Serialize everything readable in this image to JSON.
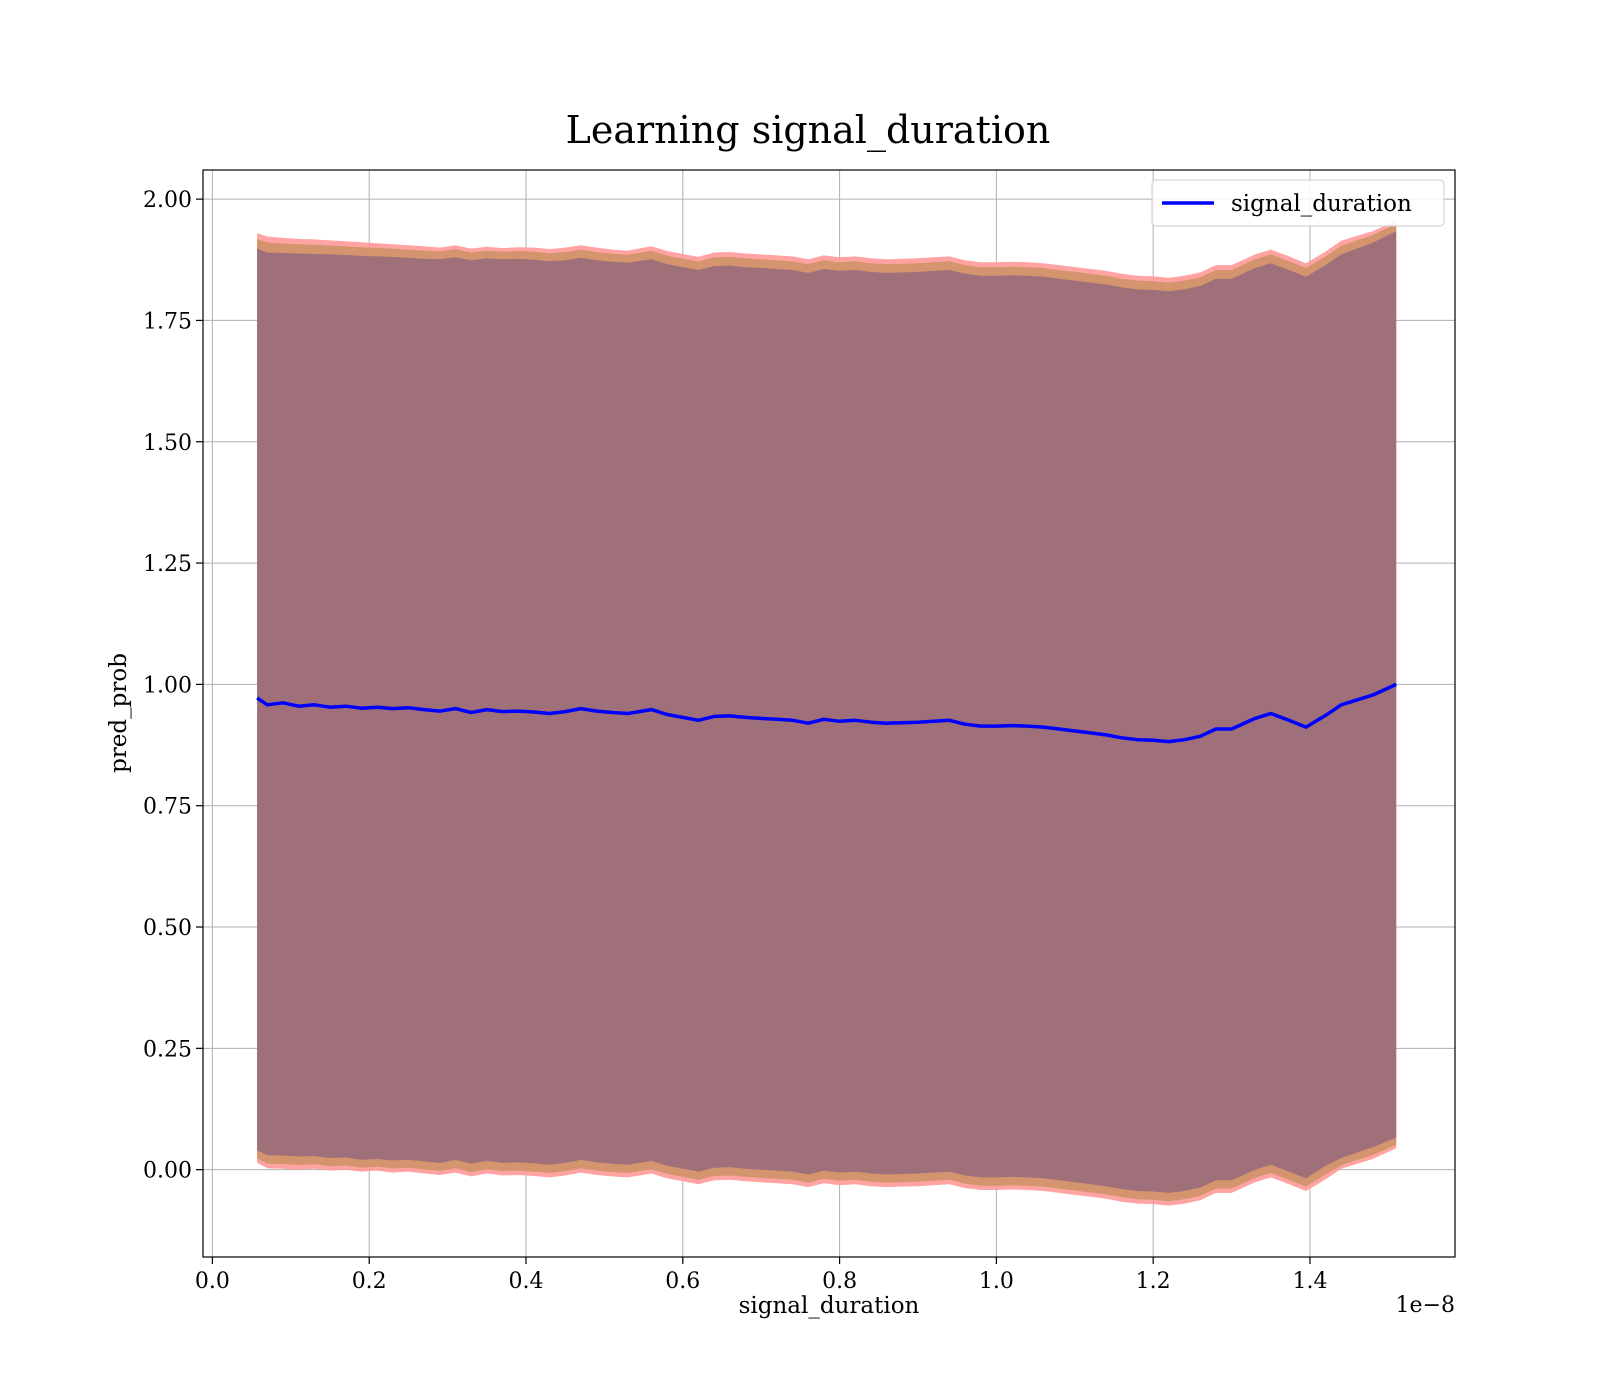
{
  "chart_data": {
    "type": "area",
    "title": "Learning signal_duration",
    "xlabel": "signal_duration",
    "ylabel": "pred_prob",
    "x_offset_text": "1e−8",
    "xlim": [
      -0.012,
      1.585
    ],
    "ylim": [
      -0.18,
      2.06
    ],
    "grid": true,
    "legend_position": "top-right",
    "x_ticks": [
      0.0,
      0.2,
      0.4,
      0.6,
      0.8,
      1.0,
      1.2,
      1.4
    ],
    "x_tick_labels": [
      "0.0",
      "0.2",
      "0.4",
      "0.6",
      "0.8",
      "1.0",
      "1.2",
      "1.4"
    ],
    "y_ticks": [
      0.0,
      0.25,
      0.5,
      0.75,
      1.0,
      1.25,
      1.5,
      1.75,
      2.0
    ],
    "y_tick_labels": [
      "0.00",
      "0.25",
      "0.50",
      "0.75",
      "1.00",
      "1.25",
      "1.50",
      "1.75",
      "2.00"
    ],
    "colors": {
      "line": "#0000ff",
      "band_outer": "#ff9999",
      "band_middle": "#d4956e",
      "band_inner": "#a0707a"
    },
    "series": [
      {
        "name": "signal_duration",
        "x": [
          0.057,
          0.07,
          0.09,
          0.11,
          0.13,
          0.15,
          0.17,
          0.19,
          0.21,
          0.23,
          0.25,
          0.27,
          0.29,
          0.31,
          0.33,
          0.35,
          0.37,
          0.39,
          0.41,
          0.43,
          0.45,
          0.47,
          0.49,
          0.51,
          0.53,
          0.56,
          0.58,
          0.6,
          0.62,
          0.64,
          0.66,
          0.68,
          0.7,
          0.72,
          0.74,
          0.76,
          0.78,
          0.8,
          0.82,
          0.84,
          0.86,
          0.88,
          0.9,
          0.92,
          0.94,
          0.96,
          0.98,
          1.0,
          1.02,
          1.04,
          1.06,
          1.08,
          1.1,
          1.12,
          1.14,
          1.16,
          1.18,
          1.2,
          1.22,
          1.24,
          1.26,
          1.28,
          1.3,
          1.33,
          1.35,
          1.37,
          1.395,
          1.42,
          1.44,
          1.48,
          1.51
        ],
        "y": [
          0.972,
          0.958,
          0.962,
          0.955,
          0.958,
          0.953,
          0.955,
          0.951,
          0.953,
          0.95,
          0.952,
          0.948,
          0.945,
          0.95,
          0.942,
          0.948,
          0.944,
          0.945,
          0.943,
          0.94,
          0.944,
          0.95,
          0.945,
          0.942,
          0.94,
          0.948,
          0.938,
          0.932,
          0.926,
          0.934,
          0.935,
          0.932,
          0.93,
          0.928,
          0.926,
          0.92,
          0.928,
          0.924,
          0.926,
          0.922,
          0.92,
          0.921,
          0.922,
          0.924,
          0.926,
          0.918,
          0.914,
          0.914,
          0.915,
          0.914,
          0.912,
          0.908,
          0.904,
          0.9,
          0.896,
          0.89,
          0.886,
          0.885,
          0.882,
          0.886,
          0.893,
          0.908,
          0.908,
          0.93,
          0.94,
          0.928,
          0.912,
          0.936,
          0.958,
          0.978,
          1.0
        ],
        "band_outer_upper": [
          1.93,
          1.923,
          1.92,
          1.918,
          1.917,
          1.915,
          1.913,
          1.911,
          1.909,
          1.907,
          1.905,
          1.903,
          1.9,
          1.905,
          1.898,
          1.902,
          1.899,
          1.901,
          1.9,
          1.897,
          1.9,
          1.905,
          1.9,
          1.896,
          1.894,
          1.903,
          1.893,
          1.887,
          1.881,
          1.89,
          1.891,
          1.888,
          1.886,
          1.884,
          1.882,
          1.876,
          1.884,
          1.88,
          1.882,
          1.878,
          1.876,
          1.877,
          1.878,
          1.88,
          1.882,
          1.874,
          1.87,
          1.87,
          1.871,
          1.87,
          1.868,
          1.864,
          1.86,
          1.856,
          1.852,
          1.846,
          1.842,
          1.841,
          1.838,
          1.842,
          1.849,
          1.864,
          1.864,
          1.886,
          1.896,
          1.884,
          1.868,
          1.892,
          1.914,
          1.934,
          1.956
        ],
        "band_outer_lower": [
          0.014,
          0.003,
          0.002,
          0.0,
          0.002,
          -0.002,
          0.0,
          -0.004,
          -0.002,
          -0.006,
          -0.004,
          -0.008,
          -0.011,
          -0.006,
          -0.014,
          -0.008,
          -0.012,
          -0.011,
          -0.013,
          -0.016,
          -0.012,
          -0.006,
          -0.011,
          -0.014,
          -0.016,
          -0.008,
          -0.018,
          -0.024,
          -0.03,
          -0.022,
          -0.021,
          -0.024,
          -0.026,
          -0.028,
          -0.03,
          -0.036,
          -0.028,
          -0.032,
          -0.03,
          -0.034,
          -0.036,
          -0.035,
          -0.034,
          -0.032,
          -0.03,
          -0.038,
          -0.042,
          -0.042,
          -0.041,
          -0.042,
          -0.044,
          -0.048,
          -0.052,
          -0.056,
          -0.06,
          -0.066,
          -0.07,
          -0.071,
          -0.074,
          -0.07,
          -0.063,
          -0.048,
          -0.048,
          -0.026,
          -0.016,
          -0.028,
          -0.044,
          -0.02,
          0.002,
          0.022,
          0.044
        ],
        "band_inner_upper": [
          1.898,
          1.89,
          1.889,
          1.888,
          1.887,
          1.886,
          1.885,
          1.883,
          1.882,
          1.881,
          1.879,
          1.877,
          1.876,
          1.88,
          1.874,
          1.878,
          1.876,
          1.877,
          1.875,
          1.872,
          1.874,
          1.879,
          1.874,
          1.871,
          1.869,
          1.876,
          1.866,
          1.86,
          1.854,
          1.862,
          1.863,
          1.86,
          1.858,
          1.856,
          1.854,
          1.848,
          1.856,
          1.852,
          1.854,
          1.85,
          1.848,
          1.849,
          1.85,
          1.852,
          1.854,
          1.846,
          1.842,
          1.842,
          1.843,
          1.842,
          1.84,
          1.836,
          1.832,
          1.828,
          1.824,
          1.818,
          1.814,
          1.813,
          1.81,
          1.814,
          1.821,
          1.836,
          1.836,
          1.858,
          1.868,
          1.856,
          1.84,
          1.864,
          1.886,
          1.91,
          1.934
        ],
        "band_inner_lower": [
          0.04,
          0.03,
          0.029,
          0.027,
          0.028,
          0.024,
          0.025,
          0.02,
          0.022,
          0.019,
          0.02,
          0.017,
          0.014,
          0.02,
          0.012,
          0.018,
          0.014,
          0.015,
          0.013,
          0.01,
          0.014,
          0.02,
          0.015,
          0.012,
          0.01,
          0.018,
          0.008,
          0.002,
          -0.004,
          0.004,
          0.005,
          0.002,
          0.0,
          -0.002,
          -0.004,
          -0.01,
          -0.002,
          -0.006,
          -0.004,
          -0.008,
          -0.01,
          -0.009,
          -0.008,
          -0.006,
          -0.004,
          -0.012,
          -0.016,
          -0.016,
          -0.015,
          -0.016,
          -0.018,
          -0.022,
          -0.026,
          -0.03,
          -0.034,
          -0.04,
          -0.044,
          -0.045,
          -0.048,
          -0.044,
          -0.037,
          -0.022,
          -0.022,
          0.0,
          0.01,
          -0.002,
          -0.018,
          0.008,
          0.024,
          0.046,
          0.066
        ]
      }
    ]
  }
}
